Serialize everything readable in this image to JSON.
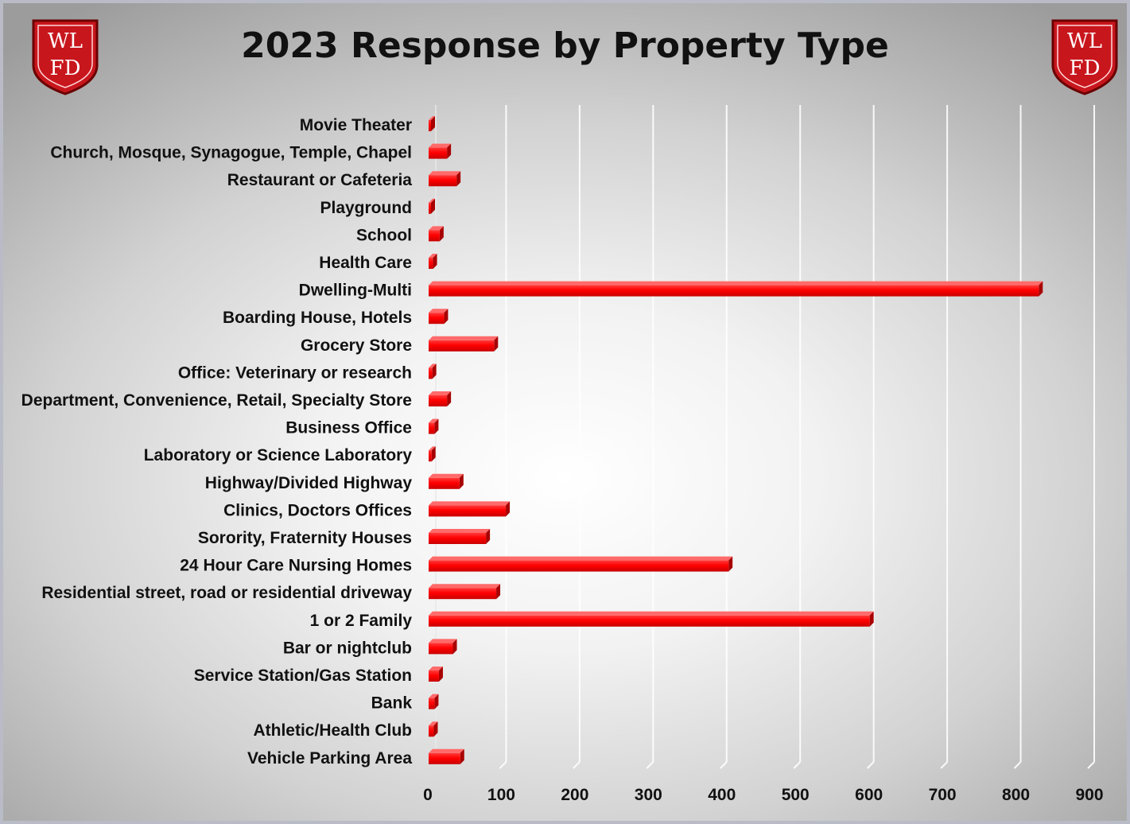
{
  "header": {
    "title": "2023 Response by Property Type",
    "logo_text_top": "WL",
    "logo_text_bottom": "FD"
  },
  "colors": {
    "bar": "#ff0000",
    "bar_dark": "#a80000",
    "gridline": "#ffffff",
    "logo_red": "#c8161d"
  },
  "chart_data": {
    "type": "bar",
    "orientation": "horizontal",
    "title": "2023 Response by Property Type",
    "xlabel": "",
    "ylabel": "",
    "xlim": [
      0,
      900
    ],
    "x_ticks": [
      0,
      100,
      200,
      300,
      400,
      500,
      600,
      700,
      800,
      900
    ],
    "grid": true,
    "legend": "none",
    "categories": [
      "Movie Theater",
      "Church, Mosque, Synagogue, Temple, Chapel",
      "Restaurant or Cafeteria",
      "Playground",
      "School",
      "Health Care",
      "Dwelling-Multi",
      "Boarding House, Hotels",
      "Grocery Store",
      "Office: Veterinary or research",
      "Department, Convenience, Retail, Specialty Store",
      "Business Office",
      "Laboratory or Science Laboratory",
      "Highway/Divided Highway",
      "Clinics, Doctors Offices",
      "Sorority, Fraternity Houses",
      "24 Hour Care Nursing Homes",
      "Residential street, road or residential driveway",
      "1 or 2 Family",
      "Bar or nightclub",
      "Service Station/Gas Station",
      "Bank",
      "Athletic/Health  Club",
      "Vehicle Parking Area"
    ],
    "values": [
      3,
      25,
      38,
      3,
      15,
      6,
      830,
      21,
      89,
      5,
      25,
      8,
      4,
      42,
      105,
      78,
      408,
      92,
      600,
      33,
      14,
      8,
      7,
      43
    ]
  }
}
